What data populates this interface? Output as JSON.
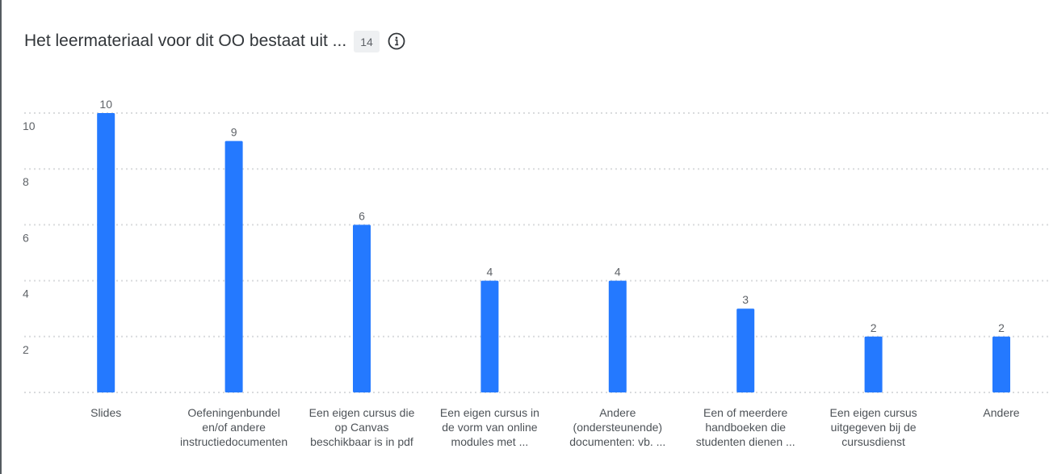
{
  "header": {
    "title": "Het leermateriaal voor dit OO bestaat uit ...",
    "count": "14",
    "info_icon": "info-circle-icon"
  },
  "colors": {
    "bar": "#2479ff",
    "grid": "#d9dbdd",
    "text": "#32363a"
  },
  "chart_data": {
    "type": "bar",
    "title": "Het leermateriaal voor dit OO bestaat uit ...",
    "xlabel": "",
    "ylabel": "",
    "ylim": [
      0,
      10
    ],
    "yticks": [
      2,
      4,
      6,
      8,
      10
    ],
    "grid": true,
    "categories": [
      "Slides",
      "Oefeningenbundel en/of andere instructiedocumenten",
      "Een eigen cursus die op Canvas beschikbaar is in pdf",
      "Een eigen cursus in de vorm van online modules met ...",
      "Andere (ondersteunende) documenten: vb. ...",
      "Een of meerdere handboeken die studenten dienen ...",
      "Een eigen cursus uitgegeven bij de cursusdienst",
      "Andere"
    ],
    "category_lines": [
      [
        "Slides"
      ],
      [
        "Oefeningenbundel",
        "en/of andere",
        "instructiedocumenten"
      ],
      [
        "Een eigen cursus die",
        "op Canvas",
        "beschikbaar is in pdf"
      ],
      [
        "Een eigen cursus in",
        "de vorm van online",
        "modules met ..."
      ],
      [
        "Andere",
        "(ondersteunende)",
        "documenten: vb. ..."
      ],
      [
        "Een of meerdere",
        "handboeken die",
        "studenten dienen ..."
      ],
      [
        "Een eigen cursus",
        "uitgegeven bij de",
        "cursusdienst"
      ],
      [
        "Andere"
      ]
    ],
    "values": [
      10,
      9,
      6,
      4,
      4,
      3,
      2,
      2
    ]
  }
}
